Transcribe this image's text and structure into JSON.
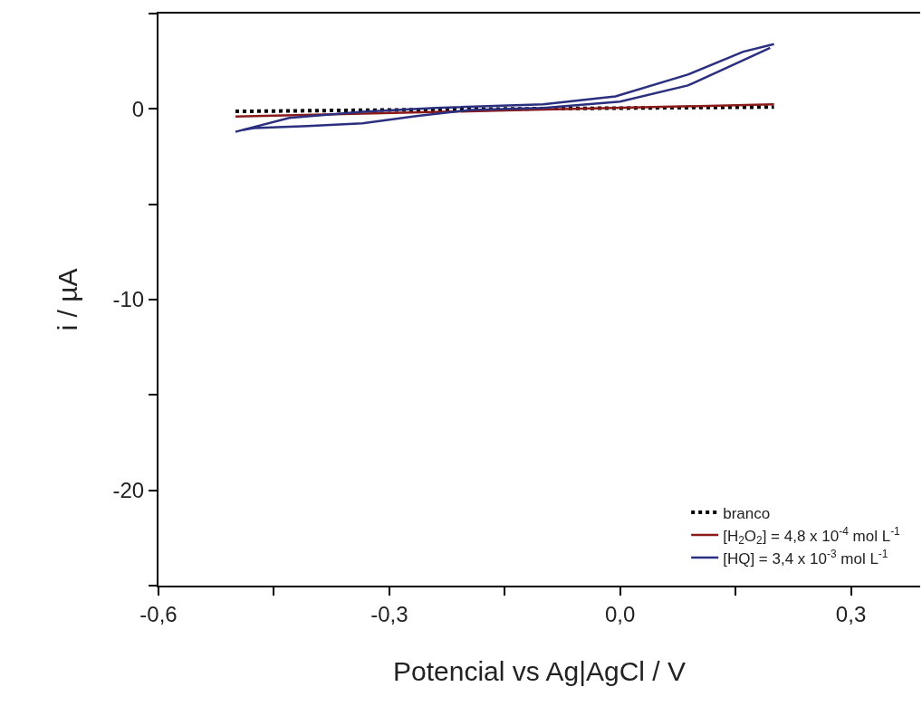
{
  "chart_data": {
    "type": "line",
    "xlabel": "Potencial vs Ag|AgCl / V",
    "ylabel": "i / µA",
    "xlim": [
      -0.6,
      0.39
    ],
    "ylim": [
      -25,
      5
    ],
    "xticks": [
      {
        "value": -0.6,
        "label": "-0,6"
      },
      {
        "value": -0.45,
        "label": null
      },
      {
        "value": -0.3,
        "label": "-0,3"
      },
      {
        "value": -0.15,
        "label": null
      },
      {
        "value": 0,
        "label": "0,0"
      },
      {
        "value": 0.15,
        "label": null
      },
      {
        "value": 0.3,
        "label": "0,3"
      }
    ],
    "yticks": [
      {
        "value": -25,
        "label": null
      },
      -20,
      {
        "value": -15,
        "label": null
      },
      -10,
      {
        "value": -5,
        "label": null
      },
      0,
      {
        "value": 5,
        "label": null
      }
    ],
    "legend": "bottom right",
    "marker": "none",
    "series": [
      {
        "name": "branco",
        "color": "#000000",
        "line_style": "dotted",
        "x": [
          -0.5,
          -0.15,
          0.2
        ],
        "values": [
          -0.13,
          0.0,
          0.1
        ]
      },
      {
        "name": "[H$_{2}$O$_{2}$] = 4,8 x 10$^{-4}$ mol L$^{-1}$",
        "color": "#8b1a1a",
        "line_style": "solid",
        "x": [
          -0.5,
          -0.15,
          0.2
        ],
        "values": [
          -0.4,
          -0.08,
          0.24
        ]
      },
      {
        "name": "[HQ] = 3,4 x 10$^{-3}$ mol L$^{-1}$",
        "color": "#2b2f7f",
        "line_style": "solid",
        "x": [
          -0.5,
          -0.43,
          -0.335,
          -0.24,
          -0.1,
          -0.006,
          0.088,
          0.16,
          0.2
        ],
        "values": [
          -1.2,
          -0.47,
          -0.15,
          0.05,
          0.24,
          0.66,
          1.8,
          3.0,
          3.4
        ]
      },
      {
        "color": "#2b2f7f",
        "line_style": "solid",
        "x": [
          0.195,
          0.088,
          0,
          -0.1,
          -0.194,
          -0.265,
          -0.335,
          -0.406,
          -0.476,
          -0.49
        ],
        "values": [
          3.2,
          1.23,
          0.38,
          0.05,
          -0.05,
          -0.38,
          -0.76,
          -0.9,
          -1.0,
          -1.1
        ]
      }
    ]
  }
}
